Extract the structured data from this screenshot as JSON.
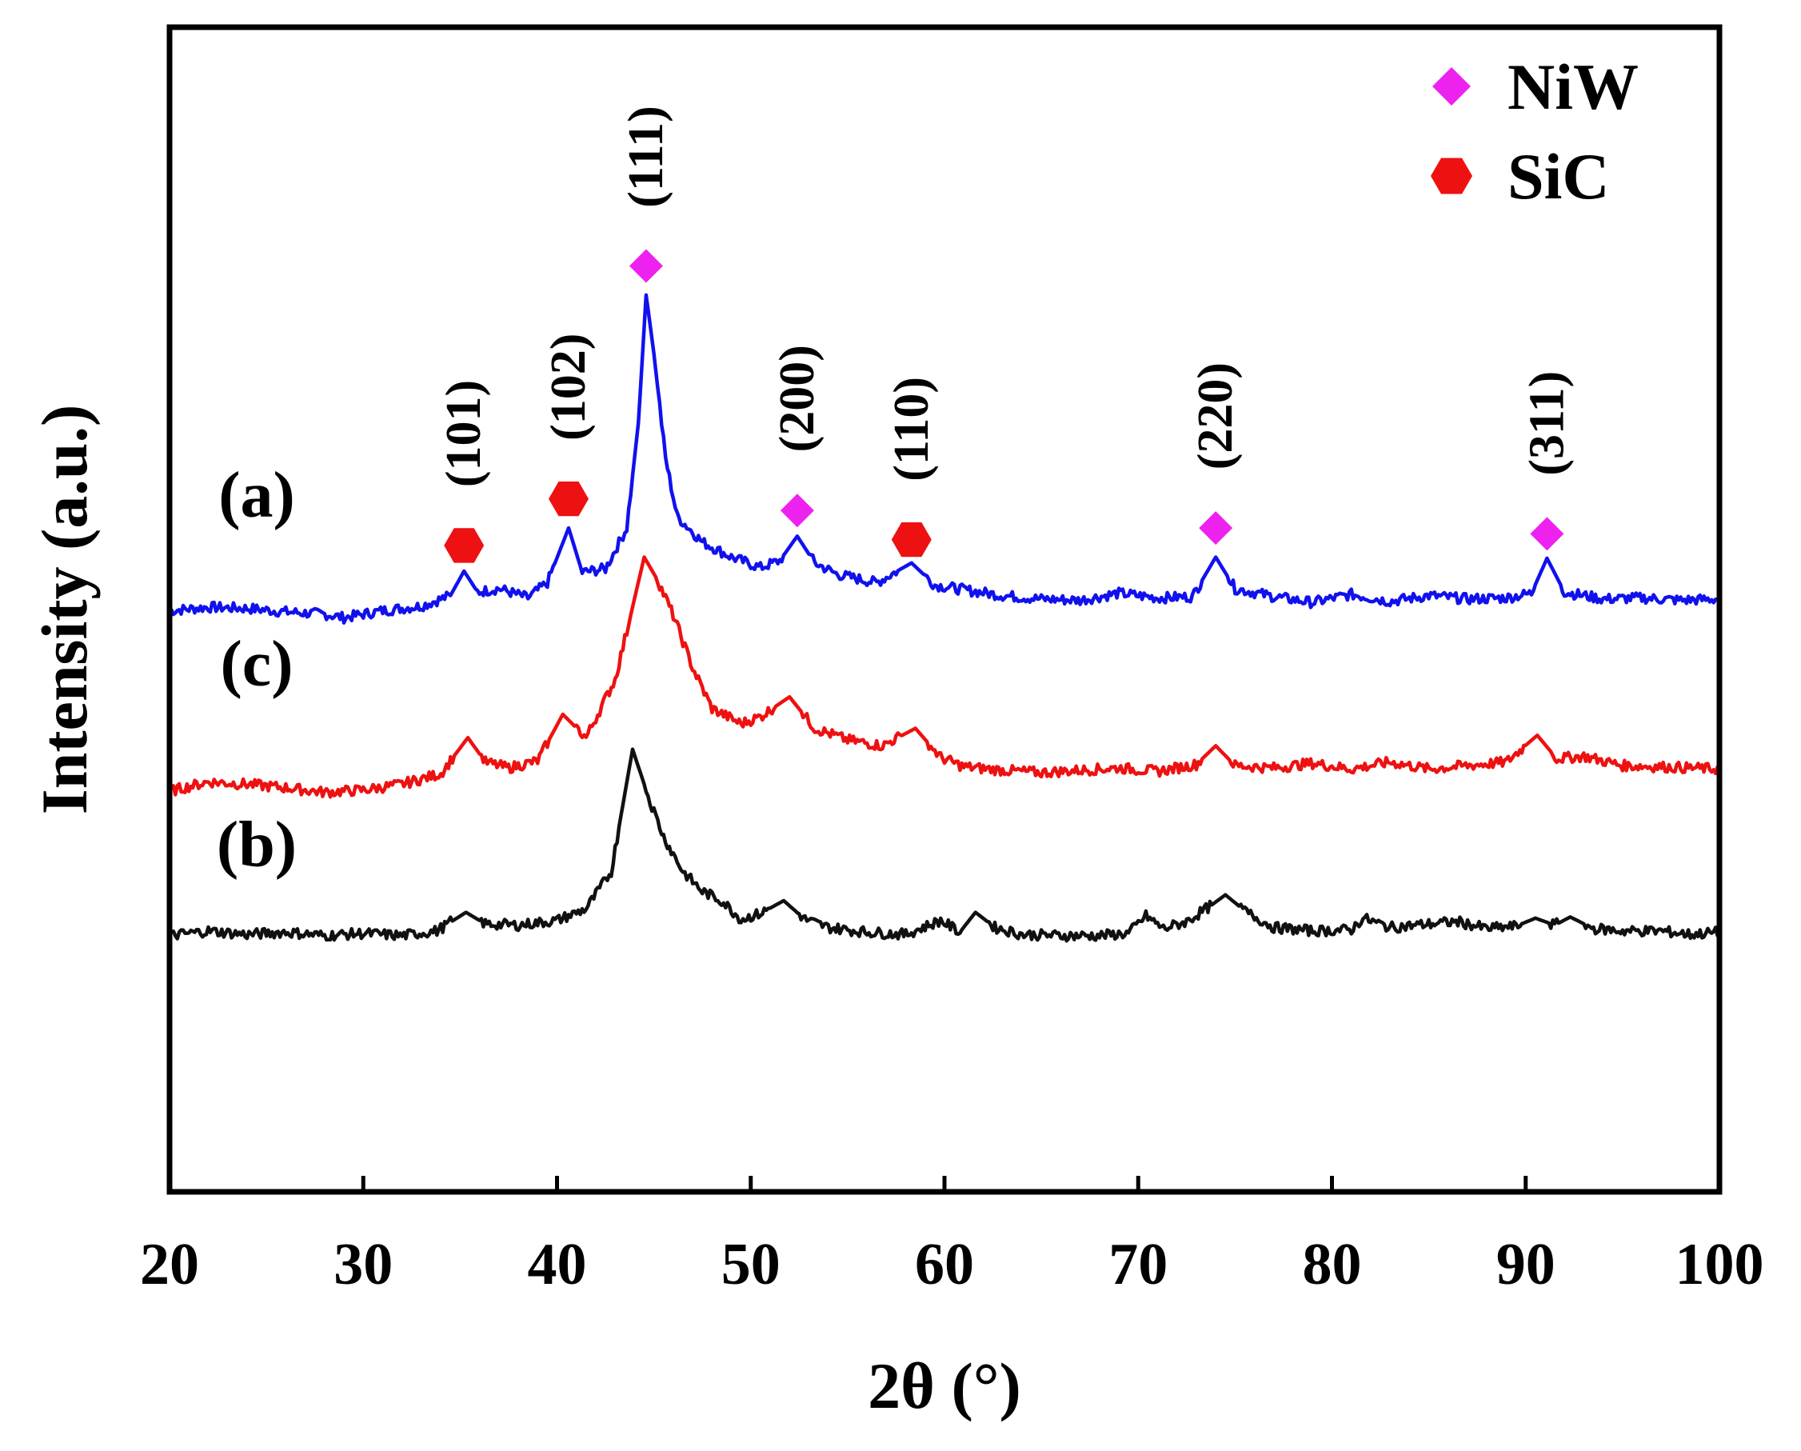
{
  "chart_data": {
    "type": "line",
    "xlabel": "2θ (°)",
    "ylabel": "Intensity (a.u.)",
    "xlim": [
      20,
      100
    ],
    "ylim": [
      0,
      100
    ],
    "xticks": [
      20,
      30,
      40,
      50,
      60,
      70,
      80,
      90,
      100
    ],
    "grid": false,
    "legend": {
      "position": "top-right",
      "entries": [
        {
          "name": "NiW",
          "marker": "diamond",
          "color": "#ee22ee"
        },
        {
          "name": "SiC",
          "marker": "hexagon",
          "color": "#ee1111"
        }
      ]
    },
    "series": [
      {
        "name": "(a)",
        "color": "#1111ee",
        "baseline": 50,
        "label_x": 24.5,
        "label_y": 58,
        "peaks": [
          [
            35.2,
            3.2,
            0.5
          ],
          [
            40.6,
            6.5,
            0.55
          ],
          [
            44.6,
            27,
            0.7
          ],
          [
            52.4,
            4.5,
            0.7
          ],
          [
            58.3,
            3.0,
            0.8
          ],
          [
            74.0,
            4.3,
            0.7
          ],
          [
            91.1,
            4.1,
            0.6
          ]
        ],
        "points": [
          [
            20,
            49.9
          ],
          [
            22,
            50.2
          ],
          [
            24,
            50.1
          ],
          [
            26,
            49.8
          ],
          [
            28,
            49.6
          ],
          [
            29,
            49.3
          ],
          [
            31,
            49.9
          ],
          [
            33,
            50.3
          ],
          [
            34.5,
            51.2
          ],
          [
            35.2,
            53.3
          ],
          [
            35.9,
            51.5
          ],
          [
            37,
            51.8
          ],
          [
            38.5,
            51.0
          ],
          [
            39.5,
            52.3
          ],
          [
            40.6,
            57.0
          ],
          [
            41.3,
            53.2
          ],
          [
            42.5,
            53.5
          ],
          [
            43.6,
            57.0
          ],
          [
            44.2,
            66.0
          ],
          [
            44.6,
            77.0
          ],
          [
            45.0,
            72.0
          ],
          [
            45.6,
            63.0
          ],
          [
            46.2,
            58.0
          ],
          [
            47.5,
            55.8
          ],
          [
            49.0,
            54.5
          ],
          [
            50.5,
            53.6
          ],
          [
            51.5,
            54.2
          ],
          [
            52.4,
            56.3
          ],
          [
            53.3,
            54.0
          ],
          [
            54.5,
            53.0
          ],
          [
            56.5,
            52.3
          ],
          [
            58.3,
            54.0
          ],
          [
            59.5,
            52.1
          ],
          [
            61,
            51.7
          ],
          [
            63,
            51.2
          ],
          [
            65,
            50.9
          ],
          [
            67,
            50.8
          ],
          [
            69,
            51.4
          ],
          [
            71,
            51.0
          ],
          [
            72.8,
            51.1
          ],
          [
            74.0,
            54.5
          ],
          [
            75.0,
            51.8
          ],
          [
            77,
            51.1
          ],
          [
            79,
            50.6
          ],
          [
            81,
            51.3
          ],
          [
            83,
            50.7
          ],
          [
            85,
            51.2
          ],
          [
            87,
            50.9
          ],
          [
            89,
            51.0
          ],
          [
            90.3,
            51.4
          ],
          [
            91.1,
            54.4
          ],
          [
            92.0,
            51.5
          ],
          [
            94,
            50.9
          ],
          [
            96,
            51.0
          ],
          [
            98,
            50.8
          ],
          [
            100,
            50.9
          ]
        ]
      },
      {
        "name": "(c)",
        "color": "#ee1111",
        "baseline": 35,
        "label_x": 24.5,
        "label_y": 43.5,
        "peaks": [
          [
            35.4,
            3.5,
            0.6
          ],
          [
            40.3,
            4.5,
            0.6
          ],
          [
            44.5,
            19,
            1.3
          ],
          [
            52.0,
            4.0,
            0.8
          ],
          [
            58.5,
            3.0,
            0.8
          ],
          [
            74.0,
            2.5,
            0.6
          ],
          [
            90.6,
            3.2,
            0.6
          ]
        ],
        "points": [
          [
            20,
            34.4
          ],
          [
            22,
            35.2
          ],
          [
            24,
            35.0
          ],
          [
            26,
            34.7
          ],
          [
            28,
            34.3
          ],
          [
            30,
            34.5
          ],
          [
            32,
            35.0
          ],
          [
            34,
            35.9
          ],
          [
            35.4,
            39.0
          ],
          [
            36.3,
            36.9
          ],
          [
            37.5,
            36.4
          ],
          [
            39,
            37.0
          ],
          [
            40.3,
            41.0
          ],
          [
            41.5,
            39.0
          ],
          [
            43,
            44.0
          ],
          [
            43.8,
            49.5
          ],
          [
            44.5,
            54.5
          ],
          [
            45.2,
            52.5
          ],
          [
            46,
            49.5
          ],
          [
            47,
            45.0
          ],
          [
            48,
            41.5
          ],
          [
            49.5,
            40.2
          ],
          [
            50.5,
            40.8
          ],
          [
            52.0,
            42.5
          ],
          [
            53.3,
            39.8
          ],
          [
            55,
            38.8
          ],
          [
            56.8,
            38.3
          ],
          [
            58.5,
            39.8
          ],
          [
            59.8,
            37.3
          ],
          [
            61,
            36.5
          ],
          [
            63,
            36.2
          ],
          [
            65,
            36.0
          ],
          [
            67,
            36.2
          ],
          [
            69,
            36.4
          ],
          [
            71,
            36.1
          ],
          [
            73,
            36.7
          ],
          [
            74.0,
            38.3
          ],
          [
            75,
            36.6
          ],
          [
            77,
            36.4
          ],
          [
            79,
            36.8
          ],
          [
            81,
            36.3
          ],
          [
            83,
            36.9
          ],
          [
            85,
            36.3
          ],
          [
            87,
            36.6
          ],
          [
            89,
            36.9
          ],
          [
            90.6,
            39.2
          ],
          [
            91.6,
            37.2
          ],
          [
            93,
            37.4
          ],
          [
            95,
            36.6
          ],
          [
            97,
            36.5
          ],
          [
            100,
            36.3
          ]
        ]
      },
      {
        "name": "(b)",
        "color": "#111111",
        "baseline": 22,
        "label_x": 24.5,
        "label_y": 28,
        "peaks": [
          [
            35.3,
            1.5,
            0.6
          ],
          [
            43.9,
            15,
            1.4
          ],
          [
            51.7,
            2.5,
            0.6
          ],
          [
            61.6,
            1.8,
            0.6
          ],
          [
            74.5,
            3.3,
            1.1
          ],
          [
            90.5,
            1.5,
            0.7
          ],
          [
            92.3,
            1.2,
            0.5
          ]
        ],
        "points": [
          [
            20,
            22.0
          ],
          [
            22,
            22.4
          ],
          [
            24,
            22.1
          ],
          [
            26,
            22.3
          ],
          [
            28,
            22.0
          ],
          [
            30,
            22.2
          ],
          [
            32,
            22.0
          ],
          [
            33.8,
            22.4
          ],
          [
            35.3,
            24.0
          ],
          [
            36.3,
            23.0
          ],
          [
            38,
            22.9
          ],
          [
            40,
            23.3
          ],
          [
            41.5,
            24.3
          ],
          [
            42.8,
            27.5
          ],
          [
            43.9,
            38.0
          ],
          [
            44.7,
            34.0
          ],
          [
            45.5,
            30.5
          ],
          [
            46.5,
            27.5
          ],
          [
            47.5,
            25.8
          ],
          [
            48.5,
            25.0
          ],
          [
            49.5,
            23.4
          ],
          [
            50.5,
            23.9
          ],
          [
            51.7,
            25.0
          ],
          [
            52.8,
            23.4
          ],
          [
            54,
            22.7
          ],
          [
            56,
            22.3
          ],
          [
            58,
            22.1
          ],
          [
            59.8,
            23.3
          ],
          [
            60.8,
            22.3
          ],
          [
            61.6,
            24.0
          ],
          [
            62.6,
            22.7
          ],
          [
            64,
            22.1
          ],
          [
            66,
            22.0
          ],
          [
            68,
            22.0
          ],
          [
            69.5,
            22.2
          ],
          [
            70.4,
            23.7
          ],
          [
            71.3,
            22.6
          ],
          [
            72.5,
            23.2
          ],
          [
            73.6,
            24.4
          ],
          [
            74.5,
            25.5
          ],
          [
            75.6,
            24.0
          ],
          [
            77,
            22.7
          ],
          [
            79,
            22.4
          ],
          [
            81,
            22.5
          ],
          [
            81.6,
            23.5
          ],
          [
            83,
            22.7
          ],
          [
            85,
            23.0
          ],
          [
            86.5,
            23.2
          ],
          [
            88,
            22.6
          ],
          [
            89.5,
            22.8
          ],
          [
            90.5,
            23.5
          ],
          [
            91.5,
            22.9
          ],
          [
            92.3,
            23.6
          ],
          [
            93.5,
            22.6
          ],
          [
            95,
            22.4
          ],
          [
            97,
            22.4
          ],
          [
            98.5,
            22.1
          ],
          [
            100,
            22.3
          ]
        ]
      }
    ],
    "annotations": [
      {
        "miller": "(101)",
        "phase": "SiC",
        "x": 35.2,
        "marker_y": 55.5,
        "label_y": 60.5
      },
      {
        "miller": "(102)",
        "phase": "SiC",
        "x": 40.6,
        "marker_y": 59.5,
        "label_y": 64.5
      },
      {
        "miller": "(111)",
        "phase": "NiW",
        "x": 44.6,
        "marker_y": 79.5,
        "label_y": 84.5
      },
      {
        "miller": "(200)",
        "phase": "NiW",
        "x": 52.4,
        "marker_y": 58.5,
        "label_y": 63.5
      },
      {
        "miller": "(110)",
        "phase": "SiC",
        "x": 58.3,
        "marker_y": 56.0,
        "label_y": 61.0
      },
      {
        "miller": "(220)",
        "phase": "NiW",
        "x": 74.0,
        "marker_y": 57.0,
        "label_y": 62.0
      },
      {
        "miller": "(311)",
        "phase": "NiW",
        "x": 91.1,
        "marker_y": 56.5,
        "label_y": 61.5
      }
    ]
  }
}
